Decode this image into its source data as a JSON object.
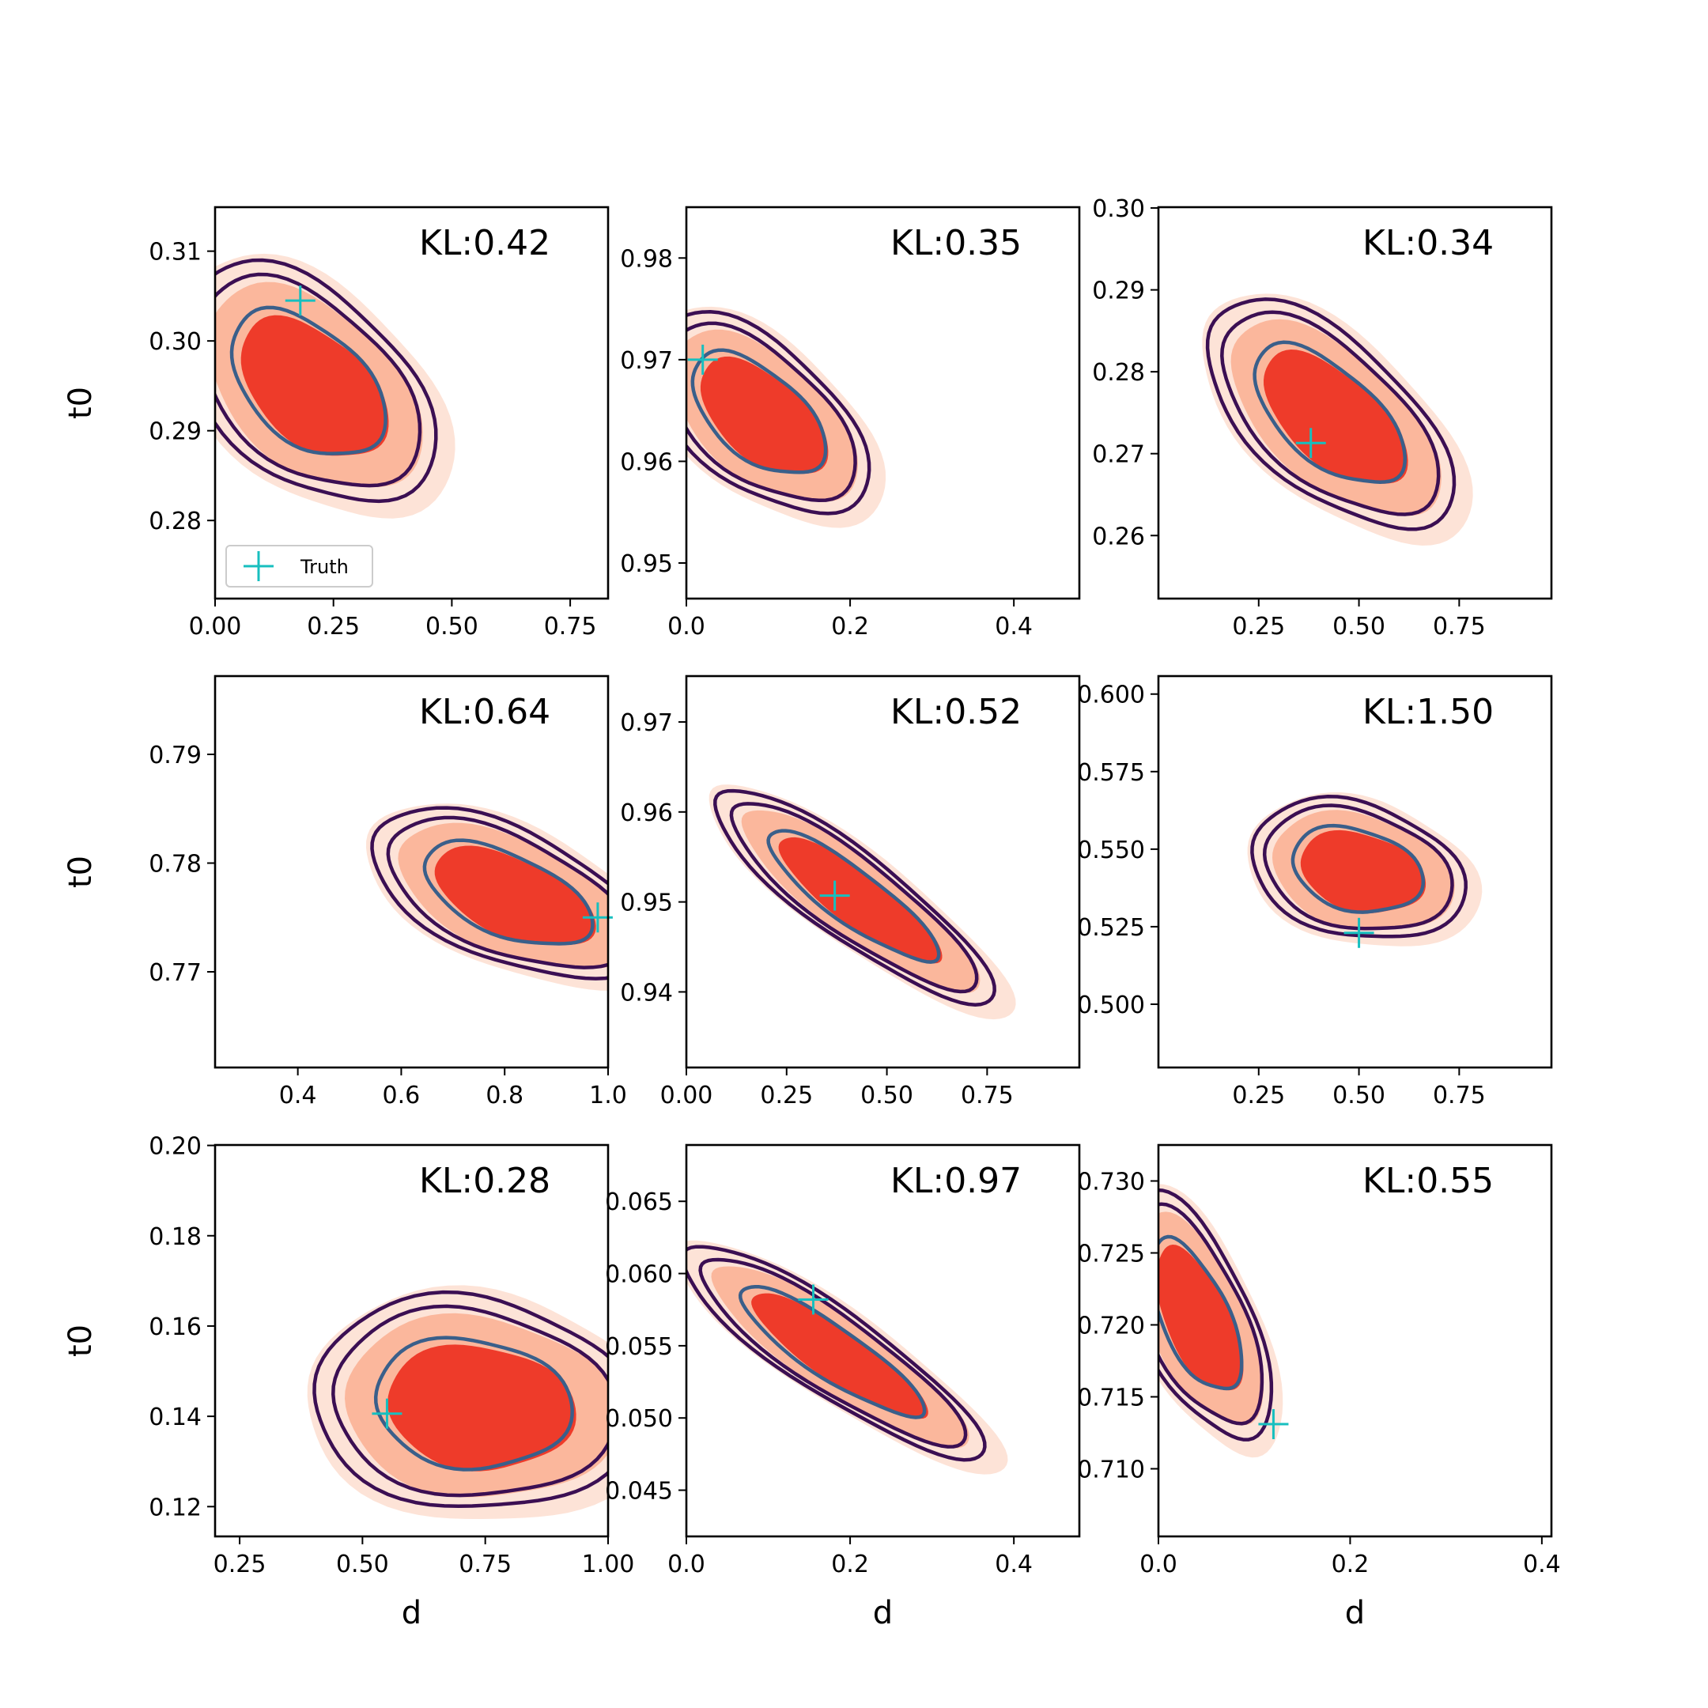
{
  "figure": {
    "legend_label": "Truth",
    "colors": {
      "fill_outer": "#fde3d7",
      "fill_mid": "#fbb79c",
      "fill_inner": "#ee3b2a",
      "contour_outer": "#3b0f53",
      "contour_inner": "#3a5f8a",
      "truth_marker": "#17bfbf"
    }
  },
  "chart_data": [
    {
      "type": "contour",
      "title": "KL:0.42",
      "xlabel": "",
      "ylabel": "t0",
      "xlim": [
        0,
        0.83
      ],
      "ylim": [
        0.2713,
        0.3149
      ],
      "xticks": [
        "0.00",
        "0.25",
        "0.50",
        "0.75"
      ],
      "xtick_values": [
        0,
        0.25,
        0.5,
        0.75
      ],
      "yticks": [
        "0.28",
        "0.29",
        "0.30",
        "0.31"
      ],
      "ytick_values": [
        0.28,
        0.29,
        0.3,
        0.31
      ],
      "truth": [
        0.18,
        0.3045
      ],
      "center": [
        0.2,
        0.295
      ],
      "spread": [
        0.13,
        0.0065
      ],
      "rho": -0.45,
      "legend": "Truth"
    },
    {
      "type": "contour",
      "title": "KL:0.35",
      "xlabel": "",
      "ylabel": "",
      "xlim": [
        0,
        0.48
      ],
      "ylim": [
        0.9465,
        0.985
      ],
      "xticks": [
        "0.0",
        "0.2",
        "0.4"
      ],
      "xtick_values": [
        0,
        0.2,
        0.4
      ],
      "yticks": [
        "0.95",
        "0.96",
        "0.97",
        "0.98"
      ],
      "ytick_values": [
        0.95,
        0.96,
        0.97,
        0.98
      ],
      "truth": [
        0.02,
        0.97
      ],
      "center": [
        0.09,
        0.9645
      ],
      "spread": [
        0.065,
        0.0048
      ],
      "rho": -0.55
    },
    {
      "type": "contour",
      "title": "KL:0.34",
      "xlabel": "",
      "ylabel": "",
      "xlim": [
        0,
        0.98
      ],
      "ylim": [
        0.2523,
        0.3001
      ],
      "xticks": [
        "0.25",
        "0.50",
        "0.75"
      ],
      "xtick_values": [
        0.25,
        0.5,
        0.75
      ],
      "yticks": [
        "0.26",
        "0.27",
        "0.28",
        "0.29",
        "0.30"
      ],
      "ytick_values": [
        0.26,
        0.27,
        0.28,
        0.29,
        0.3
      ],
      "truth": [
        0.38,
        0.2713
      ],
      "center": [
        0.43,
        0.2745
      ],
      "spread": [
        0.15,
        0.0068
      ],
      "rho": -0.6
    },
    {
      "type": "contour",
      "title": "KL:0.64",
      "xlabel": "",
      "ylabel": "t0",
      "xlim": [
        0.24,
        1.0
      ],
      "ylim": [
        0.7612,
        0.7972
      ],
      "xticks": [
        "0.4",
        "0.6",
        "0.8",
        "1.0"
      ],
      "xtick_values": [
        0.4,
        0.6,
        0.8,
        1.0
      ],
      "yticks": [
        "0.77",
        "0.78",
        "0.79"
      ],
      "ytick_values": [
        0.77,
        0.78,
        0.79
      ],
      "truth": [
        0.98,
        0.775
      ],
      "center": [
        0.81,
        0.777
      ],
      "spread": [
        0.13,
        0.0038
      ],
      "rho": -0.55
    },
    {
      "type": "contour",
      "title": "KL:0.52",
      "xlabel": "",
      "ylabel": "",
      "xlim": [
        0,
        0.98
      ],
      "ylim": [
        0.9316,
        0.9751
      ],
      "xticks": [
        "0.00",
        "0.25",
        "0.50",
        "0.75"
      ],
      "xtick_values": [
        0,
        0.25,
        0.5,
        0.75
      ],
      "yticks": [
        "0.94",
        "0.95",
        "0.96",
        "0.97"
      ],
      "ytick_values": [
        0.94,
        0.95,
        0.96,
        0.97
      ],
      "truth": [
        0.37,
        0.9507
      ],
      "center": [
        0.42,
        0.9505
      ],
      "spread": [
        0.17,
        0.0058
      ],
      "rho": -0.87
    },
    {
      "type": "contour",
      "title": "KL:1.50",
      "xlabel": "",
      "ylabel": "",
      "xlim": [
        0,
        0.98
      ],
      "ylim": [
        0.4796,
        0.6058
      ],
      "xticks": [
        "0.25",
        "0.50",
        "0.75"
      ],
      "xtick_values": [
        0.25,
        0.5,
        0.75
      ],
      "yticks": [
        "0.500",
        "0.525",
        "0.550",
        "0.575",
        "0.600"
      ],
      "ytick_values": [
        0.5,
        0.525,
        0.55,
        0.575,
        0.6
      ],
      "truth": [
        0.5,
        0.523
      ],
      "center": [
        0.5,
        0.543
      ],
      "spread": [
        0.13,
        0.011
      ],
      "rho": -0.25
    },
    {
      "type": "contour",
      "title": "KL:0.28",
      "xlabel": "d",
      "ylabel": "t0",
      "xlim": [
        0.2,
        1.0
      ],
      "ylim": [
        0.1134,
        0.2001
      ],
      "xticks": [
        "0.25",
        "0.50",
        "0.75",
        "1.00"
      ],
      "xtick_values": [
        0.25,
        0.5,
        0.75,
        1.0
      ],
      "yticks": [
        "0.12",
        "0.14",
        "0.16",
        "0.18",
        "0.20"
      ],
      "ytick_values": [
        0.12,
        0.14,
        0.16,
        0.18,
        0.2
      ],
      "truth": [
        0.55,
        0.1406
      ],
      "center": [
        0.73,
        0.1425
      ],
      "spread": [
        0.16,
        0.0115
      ],
      "rho": -0.1
    },
    {
      "type": "contour",
      "title": "KL:0.97",
      "xlabel": "d",
      "ylabel": "",
      "xlim": [
        0,
        0.48
      ],
      "ylim": [
        0.0418,
        0.0689
      ],
      "xticks": [
        "0.0",
        "0.2",
        "0.4"
      ],
      "xtick_values": [
        0,
        0.2,
        0.4
      ],
      "yticks": [
        "0.045",
        "0.050",
        "0.055",
        "0.060",
        "0.065"
      ],
      "ytick_values": [
        0.045,
        0.05,
        0.055,
        0.06,
        0.065
      ],
      "truth": [
        0.155,
        0.0582
      ],
      "center": [
        0.18,
        0.0545
      ],
      "spread": [
        0.09,
        0.0036
      ],
      "rho": -0.88
    },
    {
      "type": "contour",
      "title": "KL:0.55",
      "xlabel": "d",
      "ylabel": "",
      "xlim": [
        0,
        0.41
      ],
      "ylim": [
        0.7053,
        0.7325
      ],
      "xticks": [
        "0.0",
        "0.2",
        "0.4"
      ],
      "xtick_values": [
        0,
        0.2,
        0.4
      ],
      "yticks": [
        "0.710",
        "0.715",
        "0.720",
        "0.725",
        "0.730"
      ],
      "ytick_values": [
        0.71,
        0.715,
        0.72,
        0.725,
        0.73
      ],
      "truth": [
        0.12,
        0.7131
      ],
      "center": [
        0.04,
        0.7205
      ],
      "spread": [
        0.038,
        0.0042
      ],
      "rho": -0.6
    }
  ]
}
